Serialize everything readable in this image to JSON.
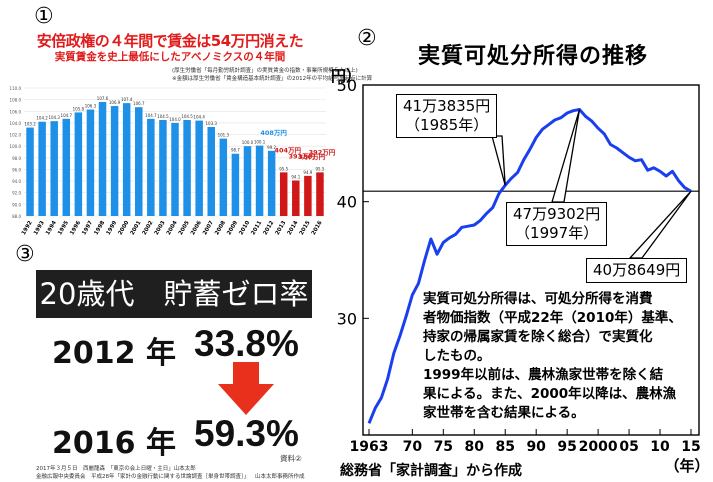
{
  "panel_markers": [
    "①",
    "②",
    "③"
  ],
  "chart_data": [
    {
      "type": "bar",
      "title": "安倍政権の４年間で賃金は54万円消えた",
      "subtitle": "実質賃金を史上最低にしたアベノミクスの４年間",
      "notes": [
        "(厚生労働省「毎月勤労統計調査」の実質賃金の指数・事業所規模５人以上)",
        "※金額は厚生労働省「賃金構造基本統計調査」の2012年の平均給与を起点に計算"
      ],
      "categories": [
        "1992",
        "1993",
        "1994",
        "1995",
        "1996",
        "1997",
        "1998",
        "1999",
        "2000",
        "2001",
        "2002",
        "2003",
        "2004",
        "2005",
        "2006",
        "2007",
        "2008",
        "2009",
        "2010",
        "2011",
        "2012",
        "2013",
        "2014",
        "2015",
        "2016"
      ],
      "values": [
        103.2,
        104.2,
        104.3,
        104.7,
        105.8,
        106.3,
        107.6,
        106.9,
        107.4,
        106.7,
        104.7,
        104.5,
        104.0,
        104.5,
        104.4,
        103.3,
        101.3,
        98.7,
        100.0,
        100.1,
        99.2,
        95.5,
        94.1,
        94.9,
        95.5
      ],
      "data_labels": [
        "103.2",
        "104.2",
        "104.3",
        "104.7",
        "105.8",
        "106.3",
        "107.6",
        "106.9",
        "107.4",
        "106.7",
        "104.7",
        "104.5",
        "104.0",
        "104.5",
        "104.4",
        "103.3",
        "101.3",
        "98.7",
        "100.0",
        "100.1",
        "99.2",
        "95.5",
        "94.1",
        "94.9",
        "95.5"
      ],
      "highlight_from_index": 21,
      "y_ticks": [
        "110.0",
        "108.0",
        "106.0",
        "104.0",
        "102.0",
        "100.0",
        "98.0",
        "96.0",
        "94.0",
        "92.0",
        "90.0",
        "88.0"
      ],
      "ylim": [
        88,
        110
      ],
      "annotations": [
        {
          "text": "408万円",
          "index": 20,
          "color": "#1e90e8"
        },
        {
          "text": "404万円",
          "index": 21,
          "color": "#d01818"
        },
        {
          "text": "393万円",
          "index": 22,
          "color": "#d01818"
        },
        {
          "text": "380万円",
          "index": 23,
          "color": "#d01818"
        },
        {
          "text": "392万円",
          "index": 24,
          "color": "#d01818"
        }
      ],
      "colors": {
        "normal": "#1e90e8",
        "highlight": "#d01818"
      }
    },
    {
      "type": "line",
      "title": "実質可処分所得の推移",
      "ylabel": "（万円）",
      "xlabel": "（年）",
      "source": "総務省「家計調査」から作成",
      "ylim": [
        20,
        50
      ],
      "xlim": [
        1963,
        2015
      ],
      "y_ticks": [
        "50",
        "40",
        "30"
      ],
      "x_ticks": [
        {
          "year": 1963,
          "label": "1963"
        },
        {
          "year": 1970,
          "label": "70"
        },
        {
          "year": 1975,
          "label": "75"
        },
        {
          "year": 1980,
          "label": "80"
        },
        {
          "year": 1985,
          "label": "85"
        },
        {
          "year": 1990,
          "label": "90"
        },
        {
          "year": 1995,
          "label": "95"
        },
        {
          "year": 2000,
          "label": "2000"
        },
        {
          "year": 2005,
          "label": "05"
        },
        {
          "year": 2010,
          "label": "10"
        },
        {
          "year": 2015,
          "label": "15"
        }
      ],
      "reference_line": 40.9,
      "series": [
        {
          "x": [
            1963,
            1964,
            1965,
            1966,
            1967,
            1968,
            1969,
            1970,
            1971,
            1972,
            1973,
            1974,
            1975,
            1976,
            1977,
            1978,
            1979,
            1980,
            1981,
            1982,
            1983,
            1984,
            1985,
            1986,
            1987,
            1988,
            1989,
            1990,
            1991,
            1992,
            1993,
            1994,
            1995,
            1996,
            1997,
            1998,
            1999,
            2000,
            2001,
            2002,
            2003,
            2004,
            2005,
            2006,
            2007,
            2008,
            2009,
            2010,
            2011,
            2012,
            2013,
            2014,
            2015
          ],
          "y": [
            21.0,
            22.3,
            23.2,
            24.8,
            27.0,
            28.5,
            30.2,
            32.0,
            33.0,
            35.0,
            36.8,
            35.5,
            36.5,
            36.9,
            37.2,
            37.8,
            37.9,
            38.0,
            38.4,
            39.0,
            39.5,
            40.7,
            41.4,
            42.0,
            42.5,
            43.6,
            44.5,
            45.5,
            46.2,
            46.6,
            47.0,
            47.2,
            47.6,
            47.8,
            47.9,
            47.3,
            46.9,
            46.3,
            45.8,
            44.9,
            44.6,
            44.2,
            43.8,
            43.5,
            43.6,
            42.7,
            42.9,
            42.6,
            42.2,
            42.6,
            41.8,
            41.2,
            40.9
          ]
        }
      ],
      "callouts": [
        {
          "lines": [
            "41万3835円",
            "（1985年）"
          ],
          "year": 1985
        },
        {
          "lines": [
            "47万9302円",
            "（1997年）"
          ],
          "year": 1997
        },
        {
          "lines": [
            "40万8649円"
          ],
          "year": 2015
        }
      ],
      "description": [
        "実質可処分所得は、可処分所得を消費",
        "者物価指数（平成22年（2010年）基準、",
        "持家の帰属家賃を除く総合）で実質化",
        "したもの。",
        "1999年以前は、農林漁家世帯を除く結",
        "果による。また、2000年以降は、農林漁",
        "家世帯を含む結果による。"
      ],
      "line_color": "#1a3ff0"
    },
    {
      "type": "table",
      "title": "20歳代　貯蓄ゼロ率",
      "rows": [
        {
          "year": "2012 年",
          "value": "33.8%"
        },
        {
          "year": "2016 年",
          "value": "59.3%"
        }
      ],
      "arrow_color": "#e8301c",
      "source_line_1": "2017年３月５日　西麗龍森　「東京の会上日曜・主日」山本太郎",
      "source_line_2": "金融広報中央委員会　平成28年「家計の金融行動に関する世論調査［単身世帯調査］」",
      "source_right": "山本太郎事務所作成",
      "ref_label": "資料②"
    }
  ]
}
